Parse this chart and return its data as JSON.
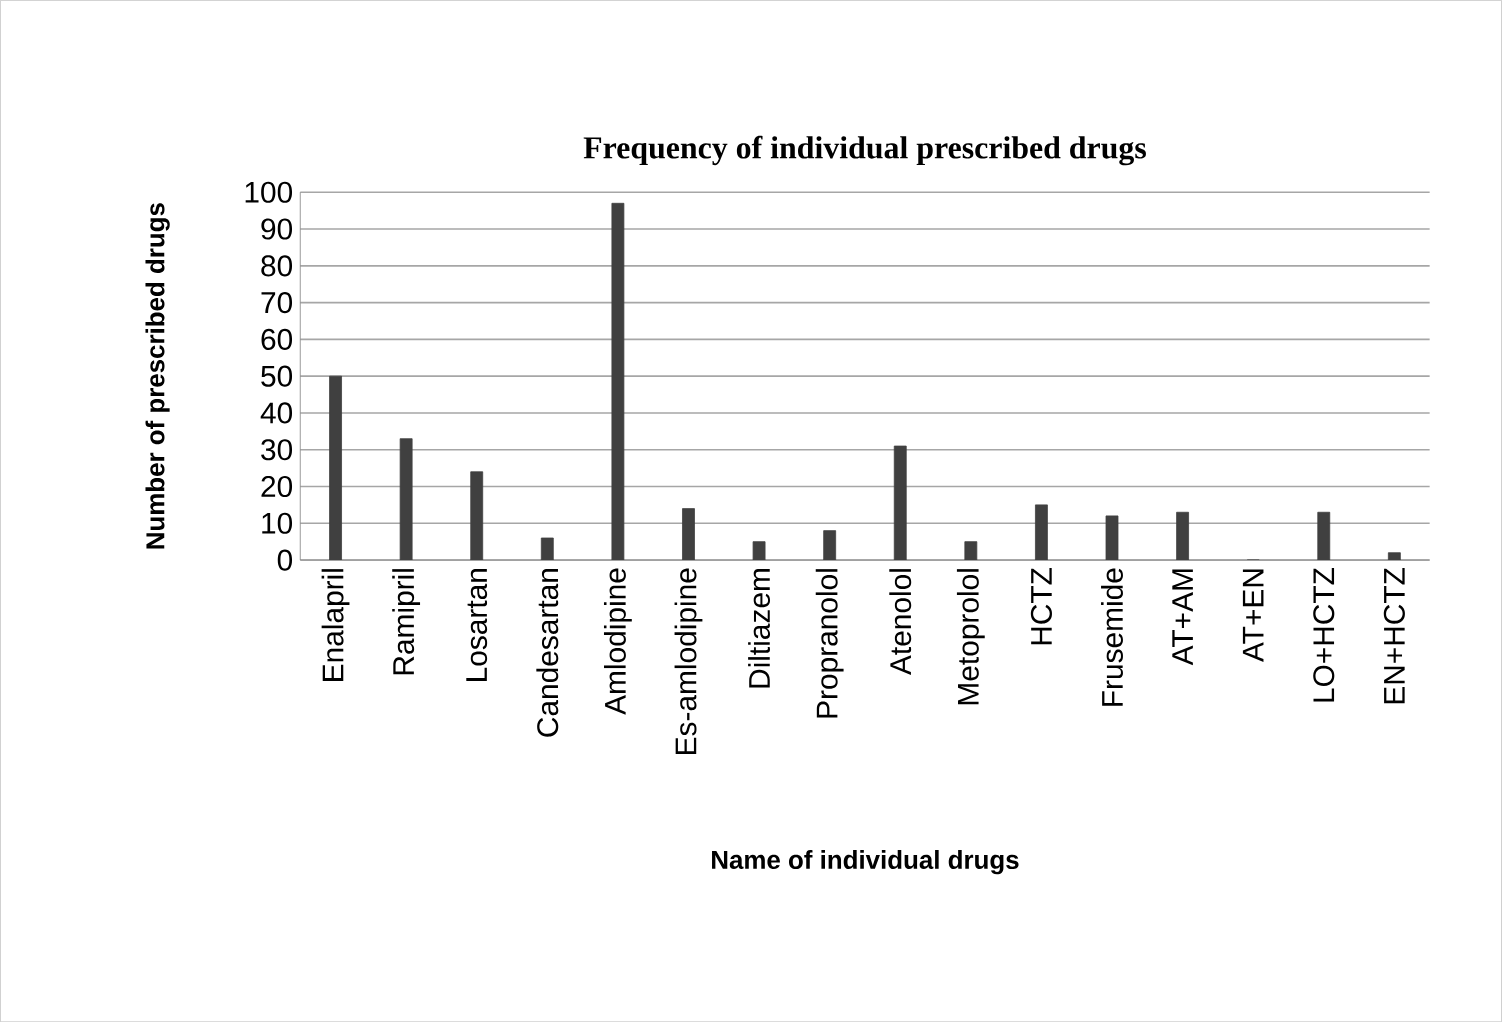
{
  "chart_data": {
    "type": "bar",
    "title": "Frequency  of individual prescribed drugs",
    "xlabel": "Name of individual drugs",
    "ylabel": "Number of prescribed drugs",
    "categories": [
      "Enalapril",
      "Ramipril",
      "Losartan",
      "Candesartan",
      "Amlodipine",
      "Es-amlodipine",
      "Diltiazem",
      "Propranolol",
      "Atenolol",
      "Metoprolol",
      "HCTZ",
      "Frusemide",
      "AT+AM",
      "AT+EN",
      "LO+HCTZ",
      "EN+HCTZ"
    ],
    "values": [
      50,
      33,
      24,
      6,
      97,
      14,
      5,
      8,
      31,
      5,
      15,
      12,
      13,
      0,
      13,
      2
    ],
    "color": "#404040",
    "ylim": [
      0,
      100
    ],
    "yticks": [
      0,
      10,
      20,
      30,
      40,
      50,
      60,
      70,
      80,
      90,
      100
    ],
    "grid": "y"
  }
}
